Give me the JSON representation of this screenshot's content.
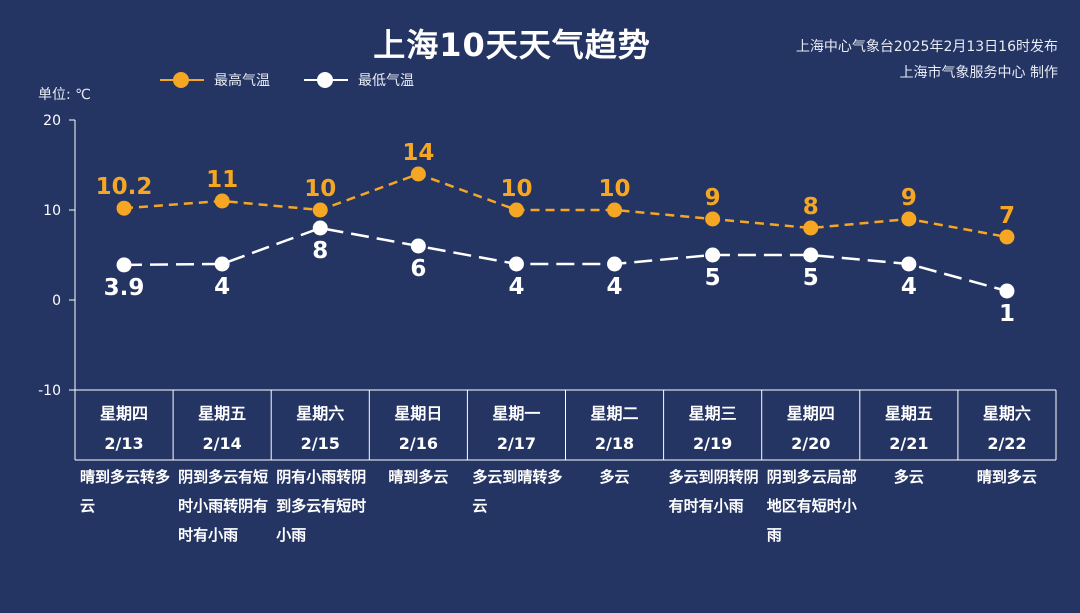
{
  "title": "上海10天天气趋势",
  "source": {
    "line1": "上海中心气象台2025年2月13日16时发布",
    "line2": "上海市气象服务中心 制作"
  },
  "unit_label": "单位: ℃",
  "colors": {
    "high": "#F5A623",
    "low": "#FFFFFF",
    "background": "#243463"
  },
  "days": [
    {
      "weekday": "星期四",
      "date": "2/13",
      "weather": "晴到多云转多云"
    },
    {
      "weekday": "星期五",
      "date": "2/14",
      "weather": "阴到多云有短时小雨转阴有时有小雨"
    },
    {
      "weekday": "星期六",
      "date": "2/15",
      "weather": "阴有小雨转阴到多云有短时小雨"
    },
    {
      "weekday": "星期日",
      "date": "2/16",
      "weather": "晴到多云"
    },
    {
      "weekday": "星期一",
      "date": "2/17",
      "weather": "多云到晴转多云"
    },
    {
      "weekday": "星期二",
      "date": "2/18",
      "weather": "多云"
    },
    {
      "weekday": "星期三",
      "date": "2/19",
      "weather": "多云到阴转阴有时有小雨"
    },
    {
      "weekday": "星期四",
      "date": "2/20",
      "weather": "阴到多云局部地区有短时小雨"
    },
    {
      "weekday": "星期五",
      "date": "2/21",
      "weather": "多云"
    },
    {
      "weekday": "星期六",
      "date": "2/22",
      "weather": "晴到多云"
    }
  ],
  "chart_data": {
    "type": "line",
    "x": [
      "2/13",
      "2/14",
      "2/15",
      "2/16",
      "2/17",
      "2/18",
      "2/19",
      "2/20",
      "2/21",
      "2/22"
    ],
    "series": [
      {
        "name": "最高气温",
        "values": [
          10.2,
          11,
          10,
          14,
          10,
          10,
          9,
          8,
          9,
          7
        ],
        "labels": [
          "10.2",
          "11",
          "10",
          "14",
          "10",
          "10",
          "9",
          "8",
          "9",
          "7"
        ]
      },
      {
        "name": "最低气温",
        "values": [
          3.9,
          4,
          8,
          6,
          4,
          4,
          5,
          5,
          4,
          1
        ],
        "labels": [
          "3.9",
          "4",
          "8",
          "6",
          "4",
          "4",
          "5",
          "5",
          "4",
          "1"
        ]
      }
    ],
    "ylim": [
      -10,
      20
    ],
    "yticks": [
      -10,
      0,
      10,
      20
    ],
    "ylabel": "单位: ℃",
    "grid": false,
    "legend_position": "top-left"
  }
}
